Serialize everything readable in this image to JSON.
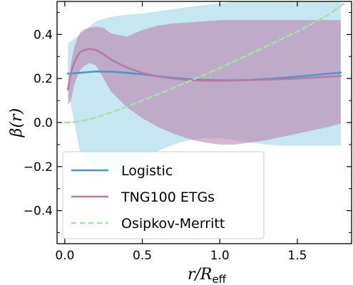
{
  "chart_data": {
    "type": "line",
    "xlabel": "r/R",
    "xlabel_sub": "eff",
    "ylabel": "β(r)",
    "xlim": [
      -0.05,
      1.85
    ],
    "ylim": [
      -0.55,
      0.55
    ],
    "x_ticks": [
      0.0,
      0.5,
      1.0,
      1.5
    ],
    "x_tick_labels": [
      "0.0",
      "0.5",
      "1.0",
      "1.5"
    ],
    "y_ticks": [
      -0.4,
      -0.2,
      0.0,
      0.2,
      0.4
    ],
    "y_tick_labels": [
      "−0.4",
      "−0.2",
      "0.0",
      "0.2",
      "0.4"
    ],
    "grid": false,
    "legend_position": "lower-left",
    "series": [
      {
        "name": "Logistic",
        "color": "#4f96c0",
        "style": "solid",
        "x": [
          0.02,
          0.1,
          0.2,
          0.3,
          0.4,
          0.5,
          0.6,
          0.7,
          0.8,
          0.9,
          1.0,
          1.1,
          1.2,
          1.3,
          1.4,
          1.5,
          1.6,
          1.7,
          1.78
        ],
        "y": [
          0.222,
          0.226,
          0.232,
          0.231,
          0.226,
          0.219,
          0.211,
          0.203,
          0.197,
          0.193,
          0.192,
          0.192,
          0.194,
          0.198,
          0.203,
          0.209,
          0.215,
          0.222,
          0.227
        ],
        "band_upper": [
          0.36,
          0.4,
          0.46,
          0.48,
          0.49,
          0.495,
          0.505,
          0.515,
          0.525,
          0.533,
          0.54,
          0.55,
          0.55,
          0.55,
          0.55,
          0.55,
          0.55,
          0.55,
          0.55
        ],
        "band_lower": [
          0.15,
          -0.14,
          -0.2,
          -0.22,
          -0.2,
          -0.17,
          -0.13,
          -0.1,
          -0.08,
          -0.07,
          -0.07,
          -0.08,
          -0.09,
          -0.1,
          -0.105,
          -0.105,
          -0.105,
          -0.105,
          -0.105
        ]
      },
      {
        "name": "TNG100 ETGs",
        "color": "#b77aa8",
        "style": "solid",
        "x": [
          0.02,
          0.04,
          0.06,
          0.08,
          0.1,
          0.13,
          0.16,
          0.2,
          0.25,
          0.3,
          0.4,
          0.5,
          0.6,
          0.7,
          0.8,
          0.9,
          1.0,
          1.1,
          1.2,
          1.3,
          1.4,
          1.5,
          1.6,
          1.7,
          1.78
        ],
        "y": [
          0.15,
          0.23,
          0.27,
          0.3,
          0.32,
          0.33,
          0.335,
          0.33,
          0.31,
          0.285,
          0.25,
          0.225,
          0.21,
          0.2,
          0.193,
          0.19,
          0.19,
          0.191,
          0.193,
          0.195,
          0.197,
          0.2,
          0.204,
          0.208,
          0.212
        ],
        "band_upper": [
          0.13,
          0.27,
          0.34,
          0.38,
          0.41,
          0.425,
          0.43,
          0.435,
          0.43,
          0.405,
          0.39,
          0.42,
          0.44,
          0.45,
          0.455,
          0.46,
          0.465,
          0.465,
          0.465,
          0.465,
          0.465,
          0.465,
          0.465,
          0.465,
          0.465
        ],
        "band_lower": [
          0.08,
          0.1,
          0.17,
          0.21,
          0.24,
          0.26,
          0.27,
          0.26,
          0.2,
          0.14,
          0.07,
          0.02,
          -0.02,
          -0.05,
          -0.075,
          -0.09,
          -0.1,
          -0.1,
          -0.09,
          -0.08,
          -0.065,
          -0.05,
          -0.035,
          -0.02,
          -0.005
        ]
      },
      {
        "name": "Osipkov-Merritt",
        "color": "#a8dfa8",
        "style": "dashed",
        "x": [
          0.0,
          0.05,
          0.1,
          0.15,
          0.2,
          0.3,
          0.4,
          0.5,
          0.6,
          0.7,
          0.8,
          0.9,
          1.0,
          1.1,
          1.2,
          1.3,
          1.4,
          1.5,
          1.6,
          1.7,
          1.8
        ],
        "y": [
          0.0,
          0.001,
          0.006,
          0.013,
          0.023,
          0.046,
          0.072,
          0.1,
          0.128,
          0.157,
          0.187,
          0.217,
          0.248,
          0.28,
          0.313,
          0.346,
          0.38,
          0.414,
          0.45,
          0.49,
          0.54
        ]
      }
    ]
  }
}
